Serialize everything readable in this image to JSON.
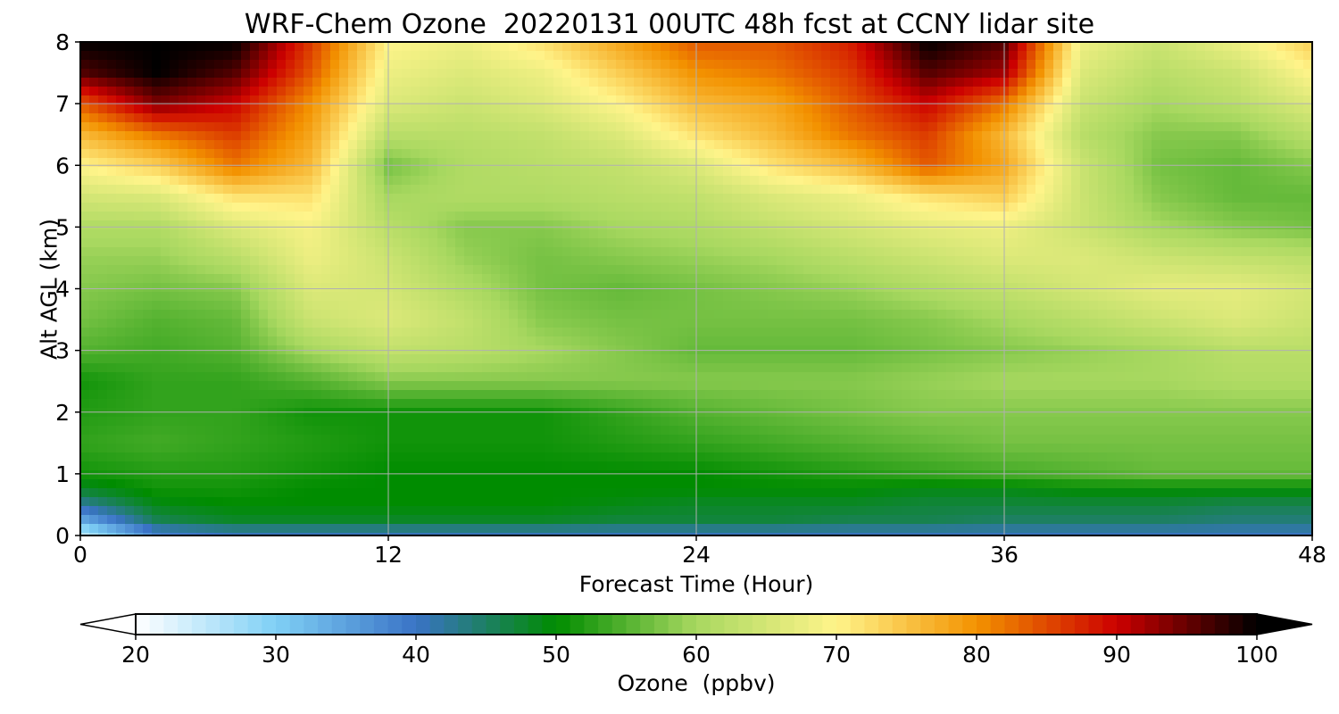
{
  "chart_data": {
    "type": "heatmap",
    "title": "WRF-Chem Ozone  20220131 00UTC 48h fcst at CCNY lidar site",
    "xlabel": "Forecast Time (Hour)",
    "ylabel": "Alt AGL (km)",
    "xlim": [
      0,
      48
    ],
    "ylim": [
      0,
      8
    ],
    "x_ticks": [
      "0",
      "12",
      "24",
      "36",
      "48"
    ],
    "y_ticks": [
      "0",
      "1",
      "2",
      "3",
      "4",
      "5",
      "6",
      "7",
      "8"
    ],
    "grid": true,
    "x": [
      0,
      3,
      6,
      9,
      12,
      15,
      18,
      21,
      24,
      27,
      30,
      33,
      36,
      39,
      42,
      45,
      48
    ],
    "y": [
      0,
      0.25,
      0.5,
      0.75,
      1,
      1.5,
      2,
      2.5,
      3,
      3.5,
      4,
      4.5,
      5,
      5.5,
      6,
      6.5,
      7,
      7.5,
      8
    ],
    "z": [
      [
        24,
        38,
        40,
        40,
        40,
        40,
        40,
        40,
        40,
        40,
        40,
        40,
        40,
        40,
        40,
        40,
        40
      ],
      [
        34,
        46,
        48,
        48,
        48,
        48,
        48,
        47,
        47,
        47,
        46,
        46,
        45,
        45,
        45,
        44,
        44
      ],
      [
        42,
        49,
        50,
        50,
        50,
        50,
        50,
        49,
        48,
        48,
        48,
        47,
        47,
        47,
        47,
        46,
        46
      ],
      [
        48,
        51,
        51,
        50,
        50,
        50,
        50,
        50,
        50,
        50,
        50,
        49,
        49,
        50,
        50,
        50,
        50
      ],
      [
        51,
        52,
        52,
        51,
        50,
        50,
        50,
        50,
        50,
        51,
        52,
        53,
        54,
        55,
        56,
        56,
        56
      ],
      [
        53,
        54,
        53,
        52,
        51,
        51,
        51,
        52,
        53,
        54,
        55,
        56,
        57,
        57,
        57,
        57,
        57
      ],
      [
        52,
        53,
        53,
        51,
        51,
        51,
        51,
        53,
        55,
        56,
        57,
        58,
        58,
        58,
        58,
        58,
        58
      ],
      [
        51,
        53,
        53,
        55,
        58,
        58,
        58,
        58,
        58,
        58,
        58,
        59,
        60,
        60,
        60,
        61,
        61
      ],
      [
        55,
        54,
        55,
        60,
        63,
        62,
        60,
        58,
        56,
        56,
        56,
        57,
        58,
        59,
        60,
        62,
        62
      ],
      [
        57,
        55,
        56,
        64,
        66,
        63,
        58,
        57,
        57,
        57,
        57,
        58,
        60,
        62,
        64,
        66,
        64
      ],
      [
        58,
        57,
        58,
        66,
        65,
        61,
        57,
        56,
        57,
        58,
        59,
        61,
        63,
        65,
        67,
        67,
        65
      ],
      [
        59,
        59,
        62,
        68,
        64,
        59,
        57,
        58,
        59,
        60,
        62,
        64,
        66,
        66,
        64,
        63,
        62
      ],
      [
        61,
        61,
        66,
        69,
        62,
        58,
        58,
        60,
        61,
        63,
        65,
        67,
        68,
        64,
        60,
        58,
        57
      ],
      [
        65,
        66,
        72,
        72,
        60,
        61,
        61,
        62,
        63,
        66,
        68,
        72,
        74,
        64,
        58,
        56,
        56
      ],
      [
        70,
        74,
        82,
        76,
        57,
        61,
        62,
        63,
        66,
        72,
        76,
        84,
        78,
        64,
        57,
        56,
        58
      ],
      [
        76,
        82,
        86,
        78,
        62,
        62,
        63,
        66,
        72,
        76,
        82,
        86,
        76,
        62,
        58,
        58,
        62
      ],
      [
        84,
        94,
        90,
        80,
        66,
        64,
        66,
        70,
        76,
        78,
        84,
        90,
        82,
        64,
        60,
        62,
        66
      ],
      [
        96,
        100,
        96,
        84,
        68,
        66,
        68,
        74,
        80,
        82,
        86,
        96,
        92,
        66,
        62,
        64,
        70
      ],
      [
        100,
        100,
        100,
        86,
        70,
        68,
        72,
        78,
        84,
        84,
        88,
        100,
        96,
        68,
        64,
        68,
        74
      ]
    ],
    "colorbar": {
      "label": "Ozone  (ppbv)",
      "min": 20,
      "max": 100,
      "ticks": [
        "20",
        "30",
        "40",
        "50",
        "60",
        "70",
        "80",
        "90",
        "100"
      ],
      "extend": "both",
      "colors": [
        "#ffffff",
        "#7fd0f5",
        "#3a73c6",
        "#008c00",
        "#a8d860",
        "#fff48a",
        "#f39200",
        "#cc0000",
        "#000000"
      ]
    }
  }
}
